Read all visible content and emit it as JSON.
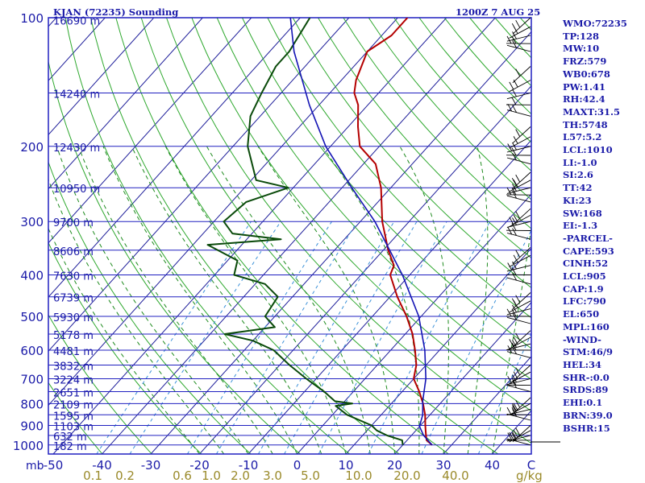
{
  "title": {
    "station": "KJAN (72235) Sounding",
    "time": "1200Z  7 AUG 25"
  },
  "chart_data": {
    "type": "skew-t",
    "pressure_unit": "mb",
    "mixing_ratio_unit": "g/kg",
    "pressure_levels": [
      100,
      200,
      300,
      400,
      500,
      600,
      700,
      800,
      900,
      1000
    ],
    "pressure_labels": [
      "100",
      "200",
      "300",
      "400",
      "500",
      "600",
      "700",
      "800",
      "900",
      "1000"
    ],
    "x_ticks": [
      -50,
      -40,
      -30,
      -20,
      -10,
      0,
      10,
      20,
      30,
      40
    ],
    "x_tick_labels": [
      "-50",
      "-40",
      "-30",
      "-20",
      "-10",
      "0",
      "10",
      "20",
      "30",
      "40"
    ],
    "x_end_label": "C",
    "mixing_ratio_labels": [
      "0.1",
      "0.2",
      "0.6",
      "1.0",
      "2.0",
      "3.0",
      "5.0",
      "10.0",
      "20.0",
      "40.0"
    ],
    "height_labels": [
      {
        "p": 101,
        "label": "16690 m"
      },
      {
        "p": 150,
        "label": "14240 m"
      },
      {
        "p": 200,
        "label": "12430 m"
      },
      {
        "p": 250,
        "label": "10950 m"
      },
      {
        "p": 300,
        "label": "9700 m"
      },
      {
        "p": 350,
        "label": "8606 m"
      },
      {
        "p": 400,
        "label": "7630 m"
      },
      {
        "p": 450,
        "label": "6739 m"
      },
      {
        "p": 500,
        "label": "5930 m"
      },
      {
        "p": 550,
        "label": "5178 m"
      },
      {
        "p": 600,
        "label": "4481 m"
      },
      {
        "p": 650,
        "label": "3832 m"
      },
      {
        "p": 700,
        "label": "3224 m"
      },
      {
        "p": 750,
        "label": "2651 m"
      },
      {
        "p": 800,
        "label": "2109 m"
      },
      {
        "p": 850,
        "label": "1595 m"
      },
      {
        "p": 900,
        "label": "1103 m"
      },
      {
        "p": 950,
        "label": "632 m"
      },
      {
        "p": 1000,
        "label": "182 m"
      }
    ],
    "temperature": [
      [
        1000,
        26.0
      ],
      [
        975,
        24.0
      ],
      [
        950,
        23.0
      ],
      [
        925,
        22.0
      ],
      [
        900,
        21.0
      ],
      [
        850,
        19.0
      ],
      [
        800,
        16.5
      ],
      [
        750,
        13.5
      ],
      [
        700,
        10.0
      ],
      [
        650,
        8.0
      ],
      [
        600,
        5.0
      ],
      [
        550,
        1.5
      ],
      [
        500,
        -3.0
      ],
      [
        450,
        -8.5
      ],
      [
        400,
        -14.0
      ],
      [
        380,
        -15.0
      ],
      [
        350,
        -19.0
      ],
      [
        300,
        -25.5
      ],
      [
        250,
        -32.0
      ],
      [
        220,
        -37.5
      ],
      [
        200,
        -44.0
      ],
      [
        180,
        -48.0
      ],
      [
        160,
        -52.0
      ],
      [
        150,
        -55.0
      ],
      [
        140,
        -57.0
      ],
      [
        120,
        -60.0
      ],
      [
        110,
        -58.0
      ],
      [
        100,
        -58.0
      ]
    ],
    "dewpoint": [
      [
        1000,
        20.0
      ],
      [
        975,
        19.0
      ],
      [
        950,
        15.0
      ],
      [
        925,
        12.0
      ],
      [
        900,
        10.0
      ],
      [
        850,
        3.0
      ],
      [
        810,
        -1.0
      ],
      [
        800,
        2.0
      ],
      [
        790,
        -2.0
      ],
      [
        750,
        -6.0
      ],
      [
        700,
        -12.0
      ],
      [
        650,
        -18.0
      ],
      [
        600,
        -24.0
      ],
      [
        570,
        -30.0
      ],
      [
        550,
        -37.0
      ],
      [
        530,
        -28.0
      ],
      [
        500,
        -32.0
      ],
      [
        450,
        -33.0
      ],
      [
        420,
        -38.0
      ],
      [
        400,
        -46.0
      ],
      [
        370,
        -48.0
      ],
      [
        340,
        -57.0
      ],
      [
        330,
        -43.0
      ],
      [
        320,
        -54.0
      ],
      [
        300,
        -58.0
      ],
      [
        270,
        -57.0
      ],
      [
        250,
        -51.0
      ],
      [
        240,
        -59.0
      ],
      [
        200,
        -67.0
      ],
      [
        170,
        -72.0
      ],
      [
        150,
        -74.0
      ],
      [
        130,
        -76.0
      ],
      [
        120,
        -76.0
      ],
      [
        100,
        -78.0
      ]
    ],
    "parcel": [
      [
        1000,
        26.0
      ],
      [
        950,
        22.5
      ],
      [
        905,
        20.0
      ],
      [
        850,
        18.5
      ],
      [
        790,
        16.0
      ],
      [
        700,
        12.5
      ],
      [
        600,
        7.0
      ],
      [
        500,
        -0.5
      ],
      [
        400,
        -11.5
      ],
      [
        300,
        -27.0
      ],
      [
        250,
        -38.0
      ],
      [
        200,
        -51.0
      ],
      [
        160,
        -62.0
      ],
      [
        120,
        -75.0
      ],
      [
        100,
        -82.0
      ]
    ],
    "series": [
      {
        "name": "temperature",
        "color": "#b40000"
      },
      {
        "name": "dewpoint",
        "color": "#0a4a0a"
      },
      {
        "name": "parcel",
        "color": "#1414b4"
      }
    ],
    "colors": {
      "frame": "#2020c0",
      "isobar": "#2020c0",
      "isotherm": "#1e1e9a",
      "dry_adiabat": "#2ea82e",
      "moist_adiabat": "#1e8b1e",
      "mixing_ratio": "#3a90d8",
      "mixing_label": "#9a8a2a",
      "label": "#1a1aa8"
    }
  },
  "indices": [
    "WMO:72235",
    "TP:128",
    "MW:10",
    "FRZ:579",
    "WB0:678",
    "PW:1.41",
    "RH:42.4",
    "MAXT:31.5",
    "TH:5748",
    "L57:5.2",
    "LCL:1010",
    "LI:-1.0",
    "SI:2.6",
    "TT:42",
    "KI:23",
    "SW:168",
    "EI:-1.3",
    "-PARCEL-",
    "CAPE:593",
    "CINH:52",
    "LCL:905",
    "CAP:1.9",
    "LFC:790",
    "EL:650",
    "MPL:160",
    "-WIND-",
    "STM:46/9",
    "HEL:34",
    "SHR-:0.0",
    "SRDS:89",
    "EHI:0.1",
    "BRN:39.0",
    "BSHR:15"
  ]
}
